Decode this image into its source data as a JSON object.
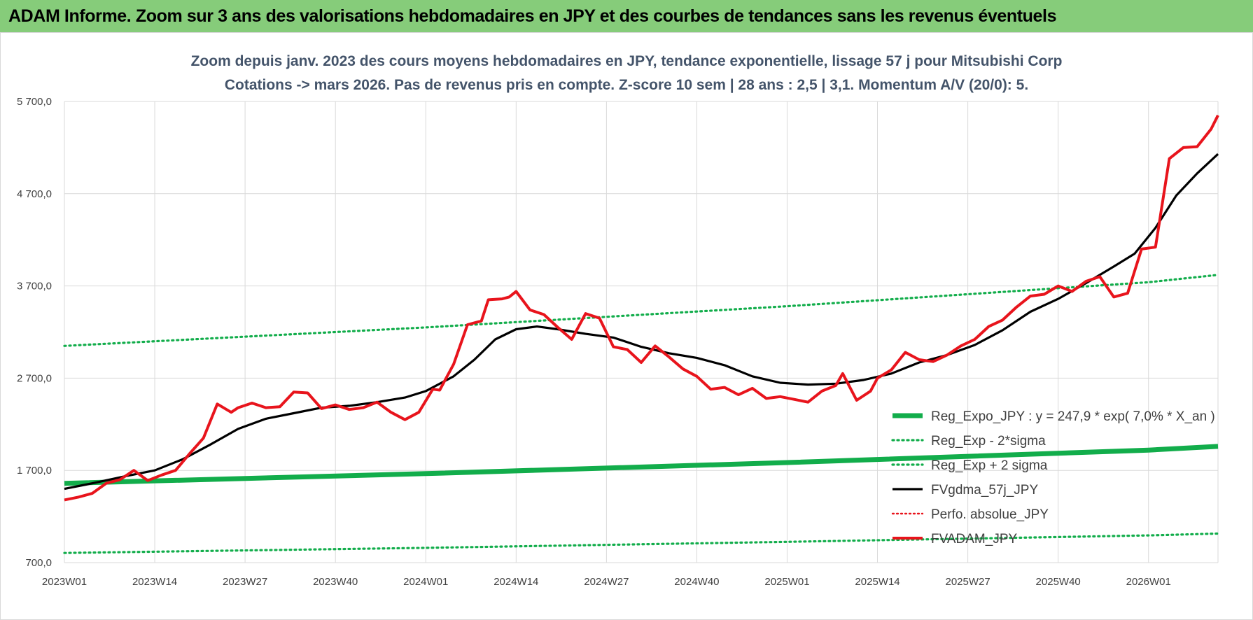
{
  "banner": {
    "title": "ADAM Informe. Zoom sur 3 ans des valorisations hebdomadaires en JPY et des courbes de tendances sans les revenus éventuels"
  },
  "colors": {
    "banner_bg": "#86cc7a",
    "title_text": "#44546a",
    "reg_green": "#12ad4b",
    "fvgdma_black": "#000000",
    "fvadam_red": "#e8141c",
    "grid": "#d9d9d9"
  },
  "chart_data": {
    "type": "line",
    "title_line1": "Zoom depuis janv. 2023 des cours moyens hebdomadaires en JPY, tendance exponentielle, lissage 57 j pour Mitsubishi Corp",
    "title_line2": "Cotations -> mars 2026. Pas de revenus pris en compte. Z-score 10 sem | 28 ans : 2,5 | 3,1. Momentum A/V (20/0): 5.",
    "ylim": [
      700,
      5700
    ],
    "y_ticks": [
      700,
      1700,
      2700,
      3700,
      4700,
      5700
    ],
    "y_tick_labels": [
      "700,0",
      "1 700,0",
      "2 700,0",
      "3 700,0",
      "4 700,0",
      "5 700,0"
    ],
    "x_range_weeks": [
      1,
      167
    ],
    "x_ticks": [
      1,
      14,
      27,
      40,
      53,
      66,
      79,
      92,
      105,
      118,
      131,
      144,
      157
    ],
    "x_tick_labels": [
      "2023W01",
      "2023W14",
      "2023W27",
      "2023W40",
      "2024W01",
      "2024W14",
      "2024W27",
      "2024W40",
      "2025W01",
      "2025W14",
      "2025W27",
      "2025W40",
      "2026W01"
    ],
    "grid": true,
    "legend_position": "bottom-right",
    "series": [
      {
        "name": "Reg_Expo_JPY : y = 247,9 * exp( 7,0% *  X_an )",
        "style": "solid-thick",
        "x": [
          1,
          53,
          105,
          157,
          167
        ],
        "y": [
          1560,
          1665,
          1785,
          1920,
          1960
        ]
      },
      {
        "name": "Reg_Exp - 2*sigma",
        "style": "dotted",
        "x": [
          1,
          53,
          105,
          157,
          167
        ],
        "y": [
          805,
          860,
          925,
          995,
          1015
        ]
      },
      {
        "name": "Reg_Exp + 2 sigma",
        "style": "dotted",
        "x": [
          1,
          53,
          105,
          157,
          167
        ],
        "y": [
          3050,
          3250,
          3480,
          3740,
          3820
        ]
      },
      {
        "name": "FVgdma_57j_JPY",
        "style": "solid",
        "x": [
          1,
          5,
          10,
          14,
          18,
          22,
          26,
          30,
          34,
          38,
          42,
          46,
          50,
          53,
          57,
          60,
          63,
          66,
          69,
          72,
          76,
          80,
          84,
          88,
          92,
          96,
          100,
          104,
          108,
          112,
          116,
          120,
          124,
          128,
          132,
          136,
          140,
          144,
          148,
          152,
          155,
          158,
          161,
          164,
          167
        ],
        "y": [
          1500,
          1560,
          1640,
          1700,
          1820,
          1980,
          2150,
          2260,
          2320,
          2380,
          2400,
          2440,
          2490,
          2560,
          2720,
          2900,
          3120,
          3230,
          3260,
          3230,
          3180,
          3140,
          3040,
          2970,
          2920,
          2840,
          2720,
          2650,
          2630,
          2640,
          2680,
          2750,
          2870,
          2950,
          3060,
          3220,
          3420,
          3560,
          3730,
          3910,
          4050,
          4330,
          4680,
          4920,
          5130
        ]
      },
      {
        "name": "Perfo. absolue_JPY",
        "style": "dotted",
        "x": [],
        "y": []
      },
      {
        "name": "FVADAM_JPY",
        "style": "solid-thick",
        "x": [
          1,
          3,
          5,
          7,
          9,
          11,
          13,
          15,
          17,
          19,
          21,
          23,
          25,
          26,
          28,
          30,
          32,
          34,
          36,
          38,
          40,
          42,
          44,
          46,
          48,
          50,
          52,
          54,
          55,
          57,
          59,
          61,
          62,
          64,
          65,
          66,
          68,
          70,
          72,
          74,
          76,
          78,
          80,
          82,
          84,
          86,
          88,
          90,
          92,
          94,
          96,
          98,
          100,
          102,
          104,
          106,
          108,
          110,
          112,
          113,
          115,
          117,
          118,
          120,
          122,
          124,
          126,
          128,
          130,
          132,
          134,
          136,
          138,
          140,
          142,
          144,
          146,
          148,
          150,
          152,
          154,
          156,
          158,
          160,
          162,
          164,
          166,
          167
        ],
        "y": [
          1380,
          1410,
          1450,
          1560,
          1600,
          1700,
          1590,
          1650,
          1700,
          1880,
          2050,
          2420,
          2330,
          2380,
          2430,
          2380,
          2390,
          2550,
          2540,
          2370,
          2410,
          2360,
          2380,
          2440,
          2330,
          2250,
          2330,
          2580,
          2570,
          2850,
          3280,
          3320,
          3550,
          3560,
          3580,
          3640,
          3440,
          3390,
          3250,
          3120,
          3400,
          3350,
          3040,
          3010,
          2870,
          3050,
          2930,
          2800,
          2720,
          2580,
          2600,
          2520,
          2590,
          2480,
          2500,
          2470,
          2440,
          2560,
          2620,
          2750,
          2460,
          2560,
          2700,
          2790,
          2980,
          2900,
          2880,
          2950,
          3050,
          3120,
          3260,
          3330,
          3470,
          3590,
          3610,
          3700,
          3640,
          3750,
          3800,
          3580,
          3620,
          4100,
          4120,
          5080,
          5200,
          5210,
          5400,
          5550
        ]
      }
    ]
  }
}
